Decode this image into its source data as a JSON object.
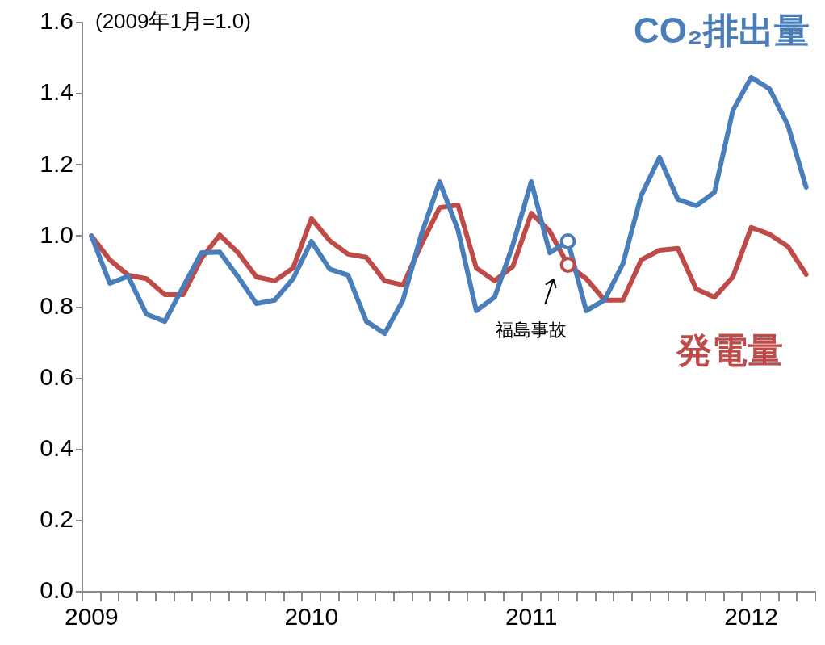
{
  "chart_data": {
    "type": "line",
    "categories": [
      "2009",
      null,
      null,
      null,
      null,
      null,
      null,
      null,
      null,
      null,
      null,
      null,
      "2010",
      null,
      null,
      null,
      null,
      null,
      null,
      null,
      null,
      null,
      null,
      null,
      "2011",
      null,
      null,
      null,
      null,
      null,
      null,
      null,
      null,
      null,
      null,
      null,
      "2012",
      null,
      null,
      null
    ],
    "series": [
      {
        "name": "CO₂排出量",
        "color": "#4a7ebb",
        "values": [
          1.0,
          0.867,
          0.887,
          0.78,
          0.76,
          0.857,
          0.953,
          0.955,
          0.885,
          0.81,
          0.82,
          0.88,
          0.985,
          0.907,
          0.89,
          0.76,
          0.726,
          0.82,
          1.005,
          1.153,
          1.017,
          0.79,
          0.828,
          0.976,
          1.153,
          0.953,
          0.985,
          0.79,
          0.82,
          0.922,
          1.114,
          1.221,
          1.103,
          1.085,
          1.123,
          1.353,
          1.446,
          1.414,
          1.312,
          1.137
        ]
      },
      {
        "name": "発電量",
        "color": "#be4b48",
        "values": [
          1.0,
          0.933,
          0.89,
          0.88,
          0.835,
          0.835,
          0.937,
          1.003,
          0.953,
          0.885,
          0.874,
          0.91,
          1.049,
          0.987,
          0.949,
          0.94,
          0.874,
          0.862,
          0.976,
          1.08,
          1.087,
          0.91,
          0.874,
          0.915,
          1.064,
          1.014,
          0.919,
          0.88,
          0.82,
          0.82,
          0.933,
          0.96,
          0.965,
          0.851,
          0.828,
          0.885,
          1.024,
          1.005,
          0.971,
          0.892
        ]
      },
      {
        "type": "scatter",
        "marker": "circle",
        "color": "#4a7ebb",
        "values": [
          null,
          null,
          null,
          null,
          null,
          null,
          null,
          null,
          null,
          null,
          null,
          null,
          null,
          null,
          null,
          null,
          null,
          null,
          null,
          null,
          null,
          null,
          null,
          null,
          null,
          null,
          0.985,
          null,
          null,
          null,
          null,
          null,
          null,
          null,
          null,
          null,
          null,
          null,
          null,
          null
        ]
      },
      {
        "type": "scatter",
        "marker": "circle",
        "color": "#be4b48",
        "values": [
          null,
          null,
          null,
          null,
          null,
          null,
          null,
          null,
          null,
          null,
          null,
          null,
          null,
          null,
          null,
          null,
          null,
          null,
          null,
          null,
          null,
          null,
          null,
          null,
          null,
          null,
          0.919,
          null,
          null,
          null,
          null,
          null,
          null,
          null,
          null,
          null,
          null,
          null,
          null,
          null
        ]
      }
    ],
    "ylim": [
      0,
      1.6
    ],
    "yticks": [
      {
        "value": 0,
        "label": "0.0"
      },
      {
        "value": 0.2,
        "label": "0.2"
      },
      {
        "value": 0.4,
        "label": "0.4"
      },
      {
        "value": 0.6,
        "label": "0.6"
      },
      {
        "value": 0.8,
        "label": "0.8"
      },
      {
        "value": 1,
        "label": "1.0"
      },
      {
        "value": 1.2,
        "label": "1.2"
      },
      {
        "value": 1.4,
        "label": "1.4"
      },
      {
        "value": 1.6,
        "label": "1.6"
      }
    ],
    "annotations": [
      "(2009年1月=1.0)",
      "福島事故"
    ],
    "grid": false,
    "legend": false,
    "marker": "none",
    "line_style": "solid"
  }
}
